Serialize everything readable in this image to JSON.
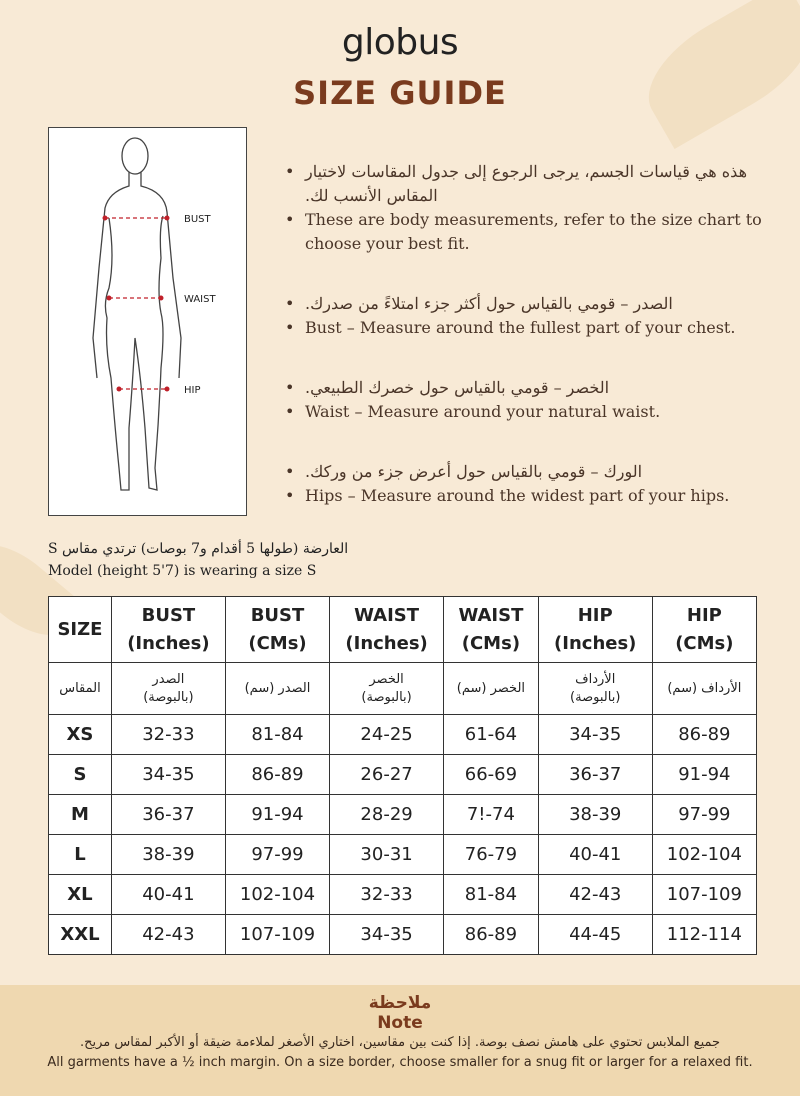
{
  "brand": "globus",
  "title": "SIZE GUIDE",
  "figure": {
    "labels": [
      "BUST",
      "WAIST",
      "HIP"
    ],
    "line_color": "#c0202a"
  },
  "bullets": [
    {
      "ar": "هذه هي قياسات الجسم، يرجى الرجوع إلى جدول المقاسات لاختيار المقاس الأنسب لك.",
      "en": "These are body measurements, refer to the size chart to choose your best fit."
    },
    {
      "ar": "الصدر – قومي بالقياس حول أكثر جزء امتلاءً من صدرك.",
      "en": "Bust – Measure around the fullest part of your chest."
    },
    {
      "ar": "الخصر – قومي بالقياس حول خصرك الطبيعي.",
      "en": "Waist – Measure around your natural waist."
    },
    {
      "ar": "الورك – قومي بالقياس حول أعرض جزء من وركك.",
      "en": "Hips – Measure around the widest part of your hips."
    }
  ],
  "model": {
    "ar": "العارضة (طولها 5 أقدام و7 بوصات) ترتدي مقاس S",
    "en": "Model (height 5'7) is wearing a size S"
  },
  "table": {
    "headers": [
      [
        "SIZE",
        ""
      ],
      [
        "BUST",
        "(Inches)"
      ],
      [
        "BUST",
        "(CMs)"
      ],
      [
        "WAIST",
        "(Inches)"
      ],
      [
        "WAIST",
        "(CMs)"
      ],
      [
        "HIP",
        "(Inches)"
      ],
      [
        "HIP",
        "(CMs)"
      ]
    ],
    "headers_ar": [
      [
        "المقاس",
        ""
      ],
      [
        "الصدر",
        "(بالبوصة)"
      ],
      [
        "الصدر (سم)",
        ""
      ],
      [
        "الخصر",
        "(بالبوصة)"
      ],
      [
        "الخصر (سم)",
        ""
      ],
      [
        "الأرداف",
        "(بالبوصة)"
      ],
      [
        "الأرداف (سم)",
        ""
      ]
    ],
    "rows": [
      [
        "XS",
        "32-33",
        "81-84",
        "24-25",
        "61-64",
        "34-35",
        "86-89"
      ],
      [
        "S",
        "34-35",
        "86-89",
        "26-27",
        "66-69",
        "36-37",
        "91-94"
      ],
      [
        "M",
        "36-37",
        "91-94",
        "28-29",
        "7!-74",
        "38-39",
        "97-99"
      ],
      [
        "L",
        "38-39",
        "97-99",
        "30-31",
        "76-79",
        "40-41",
        "102-104"
      ],
      [
        "XL",
        "40-41",
        "102-104",
        "32-33",
        "81-84",
        "42-43",
        "107-109"
      ],
      [
        "XXL",
        "42-43",
        "107-109",
        "34-35",
        "86-89",
        "44-45",
        "112-114"
      ]
    ]
  },
  "note": {
    "title_ar": "ملاحظة",
    "title_en": "Note",
    "text_ar": "جميع الملابس تحتوي على هامش نصف بوصة. إذا كنت بين مقاسين، اختاري الأصغر لملاءمة ضيقة أو الأكبر لمقاس مريح.",
    "text_en": "All garments have a ½ inch margin. On a size border, choose smaller for a snug fit or larger for a relaxed fit."
  },
  "colors": {
    "title": "#7a3b1e",
    "background": "#f8ead6",
    "note_band": "#efd8b0"
  }
}
